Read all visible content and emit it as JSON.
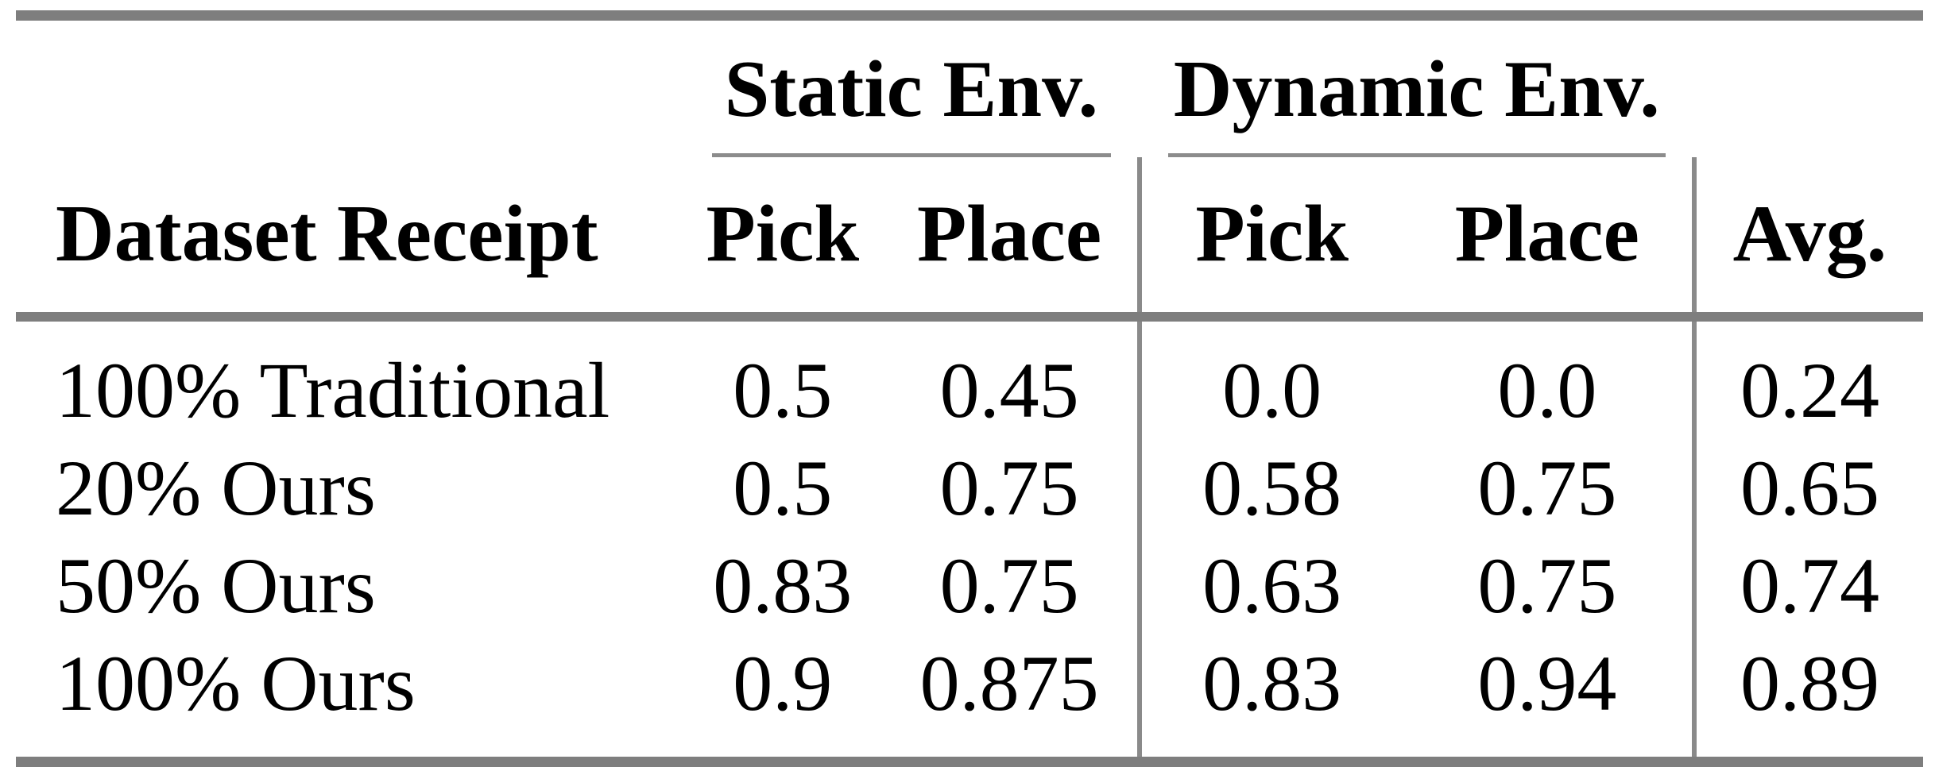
{
  "table": {
    "group_headers": {
      "static": "Static Env.",
      "dynamic": "Dynamic Env."
    },
    "column_headers": {
      "row_label": "Dataset Receipt",
      "static_pick": "Pick",
      "static_place": "Place",
      "dynamic_pick": "Pick",
      "dynamic_place": "Place",
      "avg": "Avg."
    },
    "rows": [
      {
        "label": "100% Traditional",
        "static_pick": "0.5",
        "static_place": "0.45",
        "dynamic_pick": "0.0",
        "dynamic_place": "0.0",
        "avg": "0.24"
      },
      {
        "label": "20% Ours",
        "static_pick": "0.5",
        "static_place": "0.75",
        "dynamic_pick": "0.58",
        "dynamic_place": "0.75",
        "avg": "0.65"
      },
      {
        "label": "50% Ours",
        "static_pick": "0.83",
        "static_place": "0.75",
        "dynamic_pick": "0.63",
        "dynamic_place": "0.75",
        "avg": "0.74"
      },
      {
        "label": "100% Ours",
        "static_pick": "0.9",
        "static_place": "0.875",
        "dynamic_pick": "0.83",
        "dynamic_place": "0.94",
        "avg": "0.89"
      }
    ]
  },
  "colors": {
    "background": "#ffffff",
    "text": "#000000",
    "heavy_rule": "#7e7e7e",
    "light_rule": "#8c8c8c",
    "vertical_rule": "#8a8a8a"
  }
}
